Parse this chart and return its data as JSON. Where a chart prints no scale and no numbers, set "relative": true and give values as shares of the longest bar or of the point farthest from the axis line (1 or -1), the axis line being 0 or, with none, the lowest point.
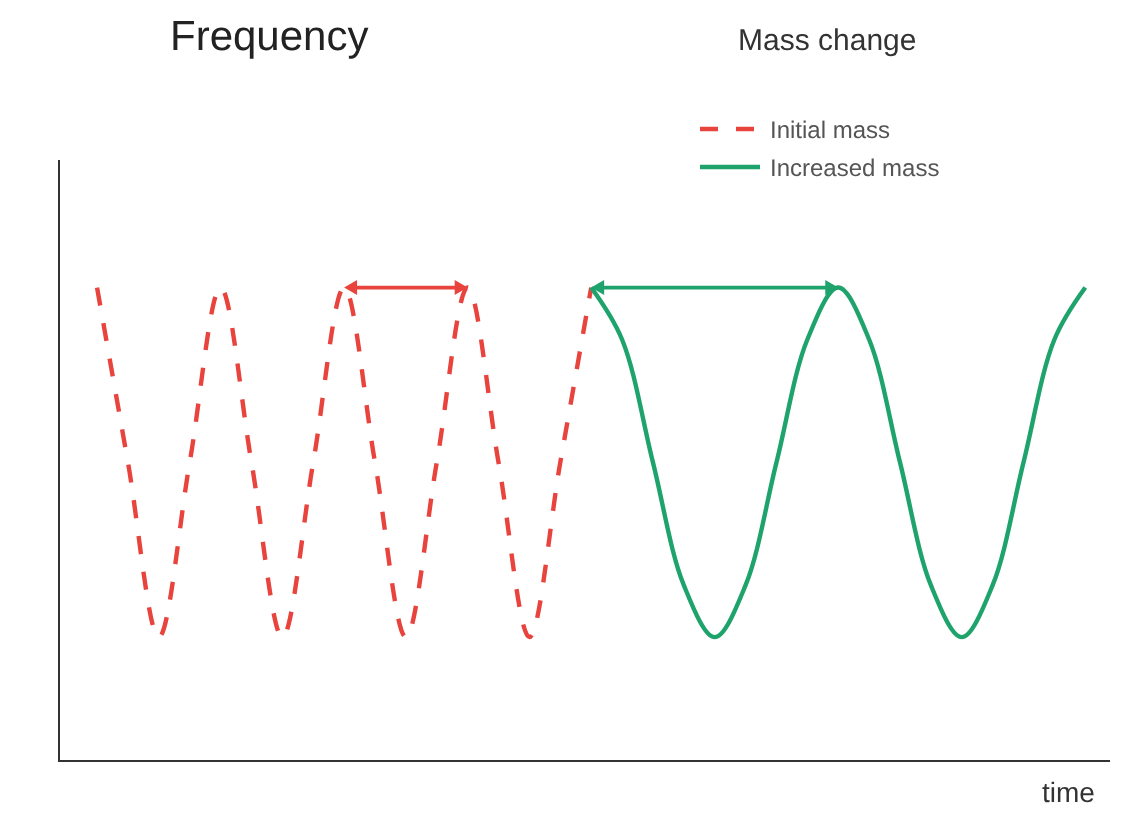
{
  "chart_data": {
    "type": "line",
    "title": "Frequency",
    "subtitle": "Mass change",
    "xlabel": "time",
    "relative": true,
    "categories": [
      null,
      null,
      null,
      null,
      null,
      null,
      null,
      null,
      null,
      null,
      null,
      null,
      null,
      null,
      null,
      null,
      null,
      null,
      null,
      null,
      null,
      null,
      null,
      null,
      null,
      null,
      null,
      null,
      null,
      null,
      null,
      null,
      null
    ],
    "series": [
      {
        "name": "Initial mass",
        "color": "#e8433c",
        "line_style": "dashed",
        "values": [
          1,
          0.63,
          0.26,
          0.63,
          1,
          0.63,
          0.26,
          0.63,
          1,
          0.63,
          0.26,
          0.63,
          1,
          0.63,
          0.26,
          0.63,
          1,
          null,
          null,
          null,
          null,
          null,
          null,
          null,
          null,
          null,
          null,
          null,
          null,
          null,
          null,
          null,
          null
        ]
      },
      {
        "name": "Increased mass",
        "color": "#1fa36c",
        "line_style": "solid",
        "values": [
          null,
          null,
          null,
          null,
          null,
          null,
          null,
          null,
          null,
          null,
          null,
          null,
          null,
          null,
          null,
          null,
          1,
          0.89,
          0.63,
          0.37,
          0.26,
          0.37,
          0.63,
          0.89,
          1,
          0.89,
          0.63,
          0.37,
          0.26,
          0.37,
          0.63,
          0.89,
          1
        ]
      }
    ],
    "legend": "top right",
    "marker": "none"
  }
}
